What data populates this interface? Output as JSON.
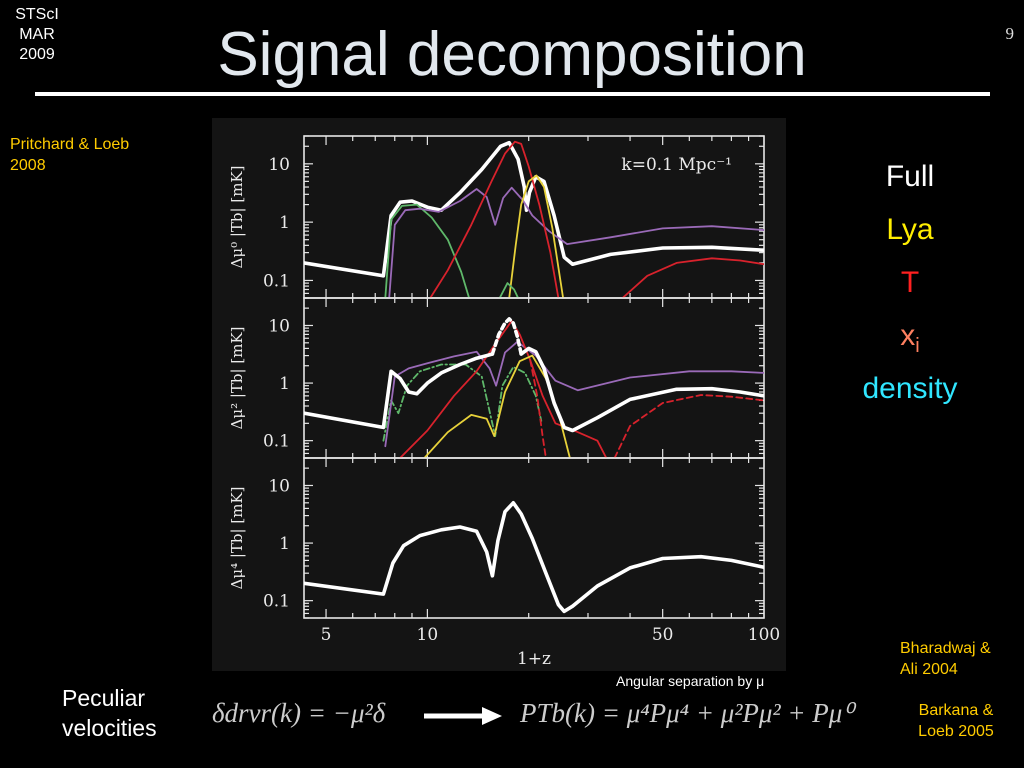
{
  "slide": {
    "corner": [
      "STScI",
      "MAR",
      "2009"
    ],
    "page_number": "9",
    "title": "Signal decomposition",
    "citation_left": "Pritchard & Loeb 2008",
    "citation_right_1": "Bharadwaj & Ali 2004",
    "citation_right_2": "Barkana & Loeb 2005",
    "legend": [
      {
        "label": "Full",
        "color": "#ffffff"
      },
      {
        "label": "Lya",
        "color": "#ffee00"
      },
      {
        "label": "T",
        "color": "#ff2020"
      },
      {
        "label": "x",
        "sub": "i",
        "color": "#ff8060"
      },
      {
        "label": "density",
        "color": "#30e6ff"
      }
    ],
    "caption": "Angular separation by μ",
    "peculiar": "Peculiar velocities",
    "equation_left": "δdrvr(k) = −μ²δ",
    "equation_right": "PTb(k) = μ⁴Pμ⁴ + μ²Pμ² + Pμ⁰"
  },
  "chart_data": {
    "type": "line",
    "xlabel": "1+z",
    "xscale": "log",
    "xlim": [
      4.3,
      100
    ],
    "xticks": [
      5,
      10,
      50,
      100
    ],
    "yscale": "log",
    "ylim": [
      0.05,
      30
    ],
    "yticks": [
      {
        "value": 10,
        "label": "10"
      },
      {
        "value": 1,
        "label": "1"
      },
      {
        "value": 0.1,
        "label": "0.1"
      }
    ],
    "annotation": "k=0.1 Mpc⁻¹",
    "colors": {
      "full": "#ffffff",
      "lya": "#e8d23a",
      "T": "#d8222c",
      "xi": "#9a6ab8",
      "density": "#5fb86a"
    },
    "panels": [
      {
        "ylabel": "Δμ⁰ |Tb| [mK]",
        "series": [
          {
            "key": "full",
            "dash": "",
            "width": 3.6,
            "points": [
              [
                4.3,
                0.2
              ],
              [
                7.4,
                0.12
              ],
              [
                7.8,
                1.3
              ],
              [
                8.3,
                2.2
              ],
              [
                9,
                2.3
              ],
              [
                10,
                1.8
              ],
              [
                11,
                1.6
              ],
              [
                12.5,
                3.2
              ],
              [
                14.5,
                8
              ],
              [
                16.5,
                20
              ],
              [
                17.5,
                23
              ],
              [
                18.6,
                12
              ],
              [
                19.4,
                4
              ],
              [
                19.7,
                1.6
              ],
              [
                20.1,
                3.2
              ],
              [
                21,
                6
              ],
              [
                22.2,
                5
              ],
              [
                23.8,
                1.3
              ],
              [
                25.5,
                0.25
              ],
              [
                27,
                0.19
              ],
              [
                35,
                0.28
              ],
              [
                50,
                0.36
              ],
              [
                70,
                0.37
              ],
              [
                100,
                0.33
              ]
            ]
          },
          {
            "key": "density",
            "dash": "",
            "width": 1.8,
            "points": [
              [
                7.5,
                0.05
              ],
              [
                7.8,
                1.1
              ],
              [
                8.4,
                1.9
              ],
              [
                9.3,
                2.0
              ],
              [
                10.3,
                1.2
              ],
              [
                11.5,
                0.5
              ],
              [
                12.6,
                0.14
              ],
              [
                13.3,
                0.05
              ]
            ]
          },
          {
            "key": "xi",
            "dash": "",
            "width": 1.8,
            "points": [
              [
                7.7,
                0.05
              ],
              [
                8,
                0.9
              ],
              [
                8.6,
                1.6
              ],
              [
                9.5,
                1.7
              ],
              [
                10.8,
                1.5
              ],
              [
                12.5,
                2.3
              ],
              [
                14,
                3.7
              ],
              [
                15,
                2.7
              ],
              [
                15.9,
                0.9
              ],
              [
                16.8,
                2.6
              ],
              [
                17.8,
                3.9
              ],
              [
                19.2,
                2.4
              ],
              [
                20.5,
                1.3
              ],
              [
                23,
                0.7
              ],
              [
                26,
                0.42
              ],
              [
                35,
                0.55
              ],
              [
                50,
                0.78
              ],
              [
                70,
                0.85
              ],
              [
                100,
                0.73
              ]
            ]
          },
          {
            "key": "T",
            "dash": "",
            "width": 1.8,
            "points": [
              [
                10.2,
                0.05
              ],
              [
                11.5,
                0.15
              ],
              [
                13.5,
                0.9
              ],
              [
                15.5,
                5
              ],
              [
                17,
                15
              ],
              [
                18.2,
                24
              ],
              [
                19,
                22
              ],
              [
                20,
                9
              ],
              [
                21.5,
                2
              ],
              [
                23.2,
                0.3
              ],
              [
                24.5,
                0.05
              ]
            ]
          },
          {
            "key": "T",
            "dash": "",
            "width": 1.8,
            "points": [
              [
                38,
                0.05
              ],
              [
                45,
                0.12
              ],
              [
                55,
                0.2
              ],
              [
                70,
                0.24
              ],
              [
                85,
                0.22
              ],
              [
                100,
                0.19
              ]
            ]
          },
          {
            "key": "lya",
            "dash": "",
            "width": 1.8,
            "points": [
              [
                17.5,
                0.05
              ],
              [
                18.3,
                0.4
              ],
              [
                19,
                2
              ],
              [
                20,
                5
              ],
              [
                21.1,
                6.3
              ],
              [
                22.2,
                4
              ],
              [
                23.5,
                0.8
              ],
              [
                25.3,
                0.05
              ]
            ]
          },
          {
            "key": "density",
            "dash": "",
            "width": 1.8,
            "points": [
              [
                16.4,
                0.05
              ],
              [
                17.3,
                0.09
              ],
              [
                18.1,
                0.07
              ],
              [
                18.6,
                0.05
              ]
            ]
          }
        ]
      },
      {
        "ylabel": "Δμ² |Tb| [mK]",
        "series": [
          {
            "key": "density",
            "dash": "6,3,1.5,3",
            "width": 1.8,
            "points": [
              [
                7.4,
                0.1
              ],
              [
                7.8,
                0.5
              ],
              [
                8.2,
                0.3
              ],
              [
                8.7,
                0.9
              ],
              [
                9.5,
                1.6
              ],
              [
                11,
                2.1
              ],
              [
                13,
                2.1
              ],
              [
                14.5,
                1.3
              ],
              [
                15.9,
                0.12
              ],
              [
                16.7,
                0.9
              ],
              [
                18,
                1.9
              ],
              [
                19.5,
                1.5
              ],
              [
                21,
                0.6
              ],
              [
                21.8,
                0.22
              ]
            ]
          },
          {
            "key": "xi",
            "dash": "",
            "width": 1.8,
            "points": [
              [
                7.5,
                0.08
              ],
              [
                8,
                1.3
              ],
              [
                8.8,
                1.8
              ],
              [
                10,
                2.2
              ],
              [
                12,
                2.9
              ],
              [
                14,
                3.5
              ],
              [
                15.3,
                1.8
              ],
              [
                16,
                0.9
              ],
              [
                17,
                3.4
              ],
              [
                18.5,
                5.2
              ],
              [
                21,
                3
              ],
              [
                24,
                1.1
              ],
              [
                28,
                0.75
              ],
              [
                40,
                1.25
              ],
              [
                60,
                1.6
              ],
              [
                80,
                1.6
              ],
              [
                100,
                1.5
              ]
            ]
          },
          {
            "key": "T",
            "dash": "",
            "width": 1.8,
            "points": [
              [
                8.3,
                0.05
              ],
              [
                10,
                0.15
              ],
              [
                12,
                0.6
              ],
              [
                14,
                1.6
              ],
              [
                16,
                5
              ],
              [
                17.8,
                12
              ],
              [
                18.8,
                7
              ],
              [
                20.2,
                2.5
              ],
              [
                22,
                0.6
              ],
              [
                24,
                0.2
              ],
              [
                28,
                0.14
              ],
              [
                32,
                0.1
              ],
              [
                34,
                0.05
              ]
            ]
          },
          {
            "key": "T",
            "dash": "6,4",
            "width": 1.8,
            "points": [
              [
                20.2,
                2.5
              ],
              [
                21.2,
                0.6
              ],
              [
                22,
                0.12
              ],
              [
                22.5,
                0.05
              ]
            ]
          },
          {
            "key": "T",
            "dash": "6,4",
            "width": 1.8,
            "points": [
              [
                36,
                0.05
              ],
              [
                40,
                0.18
              ],
              [
                50,
                0.45
              ],
              [
                65,
                0.62
              ],
              [
                80,
                0.58
              ],
              [
                100,
                0.5
              ]
            ]
          },
          {
            "key": "lya",
            "dash": "",
            "width": 1.8,
            "points": [
              [
                9.8,
                0.05
              ],
              [
                11.5,
                0.14
              ],
              [
                13.5,
                0.28
              ],
              [
                15,
                0.24
              ],
              [
                15.8,
                0.12
              ],
              [
                17,
                0.7
              ],
              [
                18.8,
                2.4
              ],
              [
                20.5,
                3
              ],
              [
                22.5,
                1.2
              ],
              [
                24.5,
                0.3
              ],
              [
                26.5,
                0.05
              ]
            ]
          },
          {
            "key": "full",
            "dash": "",
            "width": 3.6,
            "points": [
              [
                4.3,
                0.3
              ],
              [
                7.4,
                0.17
              ],
              [
                7.8,
                1.6
              ],
              [
                8.3,
                1.2
              ],
              [
                8.8,
                0.7
              ],
              [
                9.3,
                0.65
              ],
              [
                10,
                1
              ],
              [
                11,
                1.5
              ],
              [
                12.5,
                2.1
              ],
              [
                14,
                2.7
              ],
              [
                15,
                3
              ],
              [
                15.6,
                3.2
              ]
            ]
          },
          {
            "key": "full",
            "dash": "5,4",
            "width": 3.6,
            "points": [
              [
                15.6,
                3.2
              ],
              [
                16.3,
                7
              ],
              [
                17,
                11
              ],
              [
                17.5,
                13
              ],
              [
                18,
                11
              ],
              [
                18.5,
                6.5
              ],
              [
                19,
                3.2
              ]
            ]
          },
          {
            "key": "full",
            "dash": "",
            "width": 3.6,
            "points": [
              [
                19,
                3.2
              ],
              [
                20,
                4
              ],
              [
                21,
                3.5
              ],
              [
                22.2,
                1.8
              ],
              [
                23.8,
                0.45
              ],
              [
                25.5,
                0.17
              ],
              [
                27,
                0.15
              ],
              [
                32,
                0.25
              ],
              [
                40,
                0.52
              ],
              [
                55,
                0.78
              ],
              [
                70,
                0.8
              ],
              [
                85,
                0.7
              ],
              [
                100,
                0.6
              ]
            ]
          }
        ]
      },
      {
        "ylabel": "Δμ⁴ |Tb| [mK]",
        "series": [
          {
            "key": "full",
            "dash": "",
            "width": 3.6,
            "points": [
              [
                4.3,
                0.2
              ],
              [
                7.4,
                0.13
              ],
              [
                7.9,
                0.45
              ],
              [
                8.5,
                0.9
              ],
              [
                9.5,
                1.35
              ],
              [
                11,
                1.7
              ],
              [
                12.5,
                1.9
              ],
              [
                14,
                1.6
              ],
              [
                15,
                0.7
              ],
              [
                15.6,
                0.27
              ],
              [
                16.2,
                1.1
              ],
              [
                17,
                3.5
              ],
              [
                18,
                5
              ],
              [
                19,
                3.2
              ],
              [
                20.5,
                1.2
              ],
              [
                22.5,
                0.3
              ],
              [
                24.5,
                0.085
              ],
              [
                25.5,
                0.065
              ],
              [
                27,
                0.08
              ],
              [
                32,
                0.18
              ],
              [
                40,
                0.37
              ],
              [
                50,
                0.54
              ],
              [
                65,
                0.58
              ],
              [
                80,
                0.5
              ],
              [
                100,
                0.38
              ]
            ]
          }
        ]
      }
    ]
  }
}
